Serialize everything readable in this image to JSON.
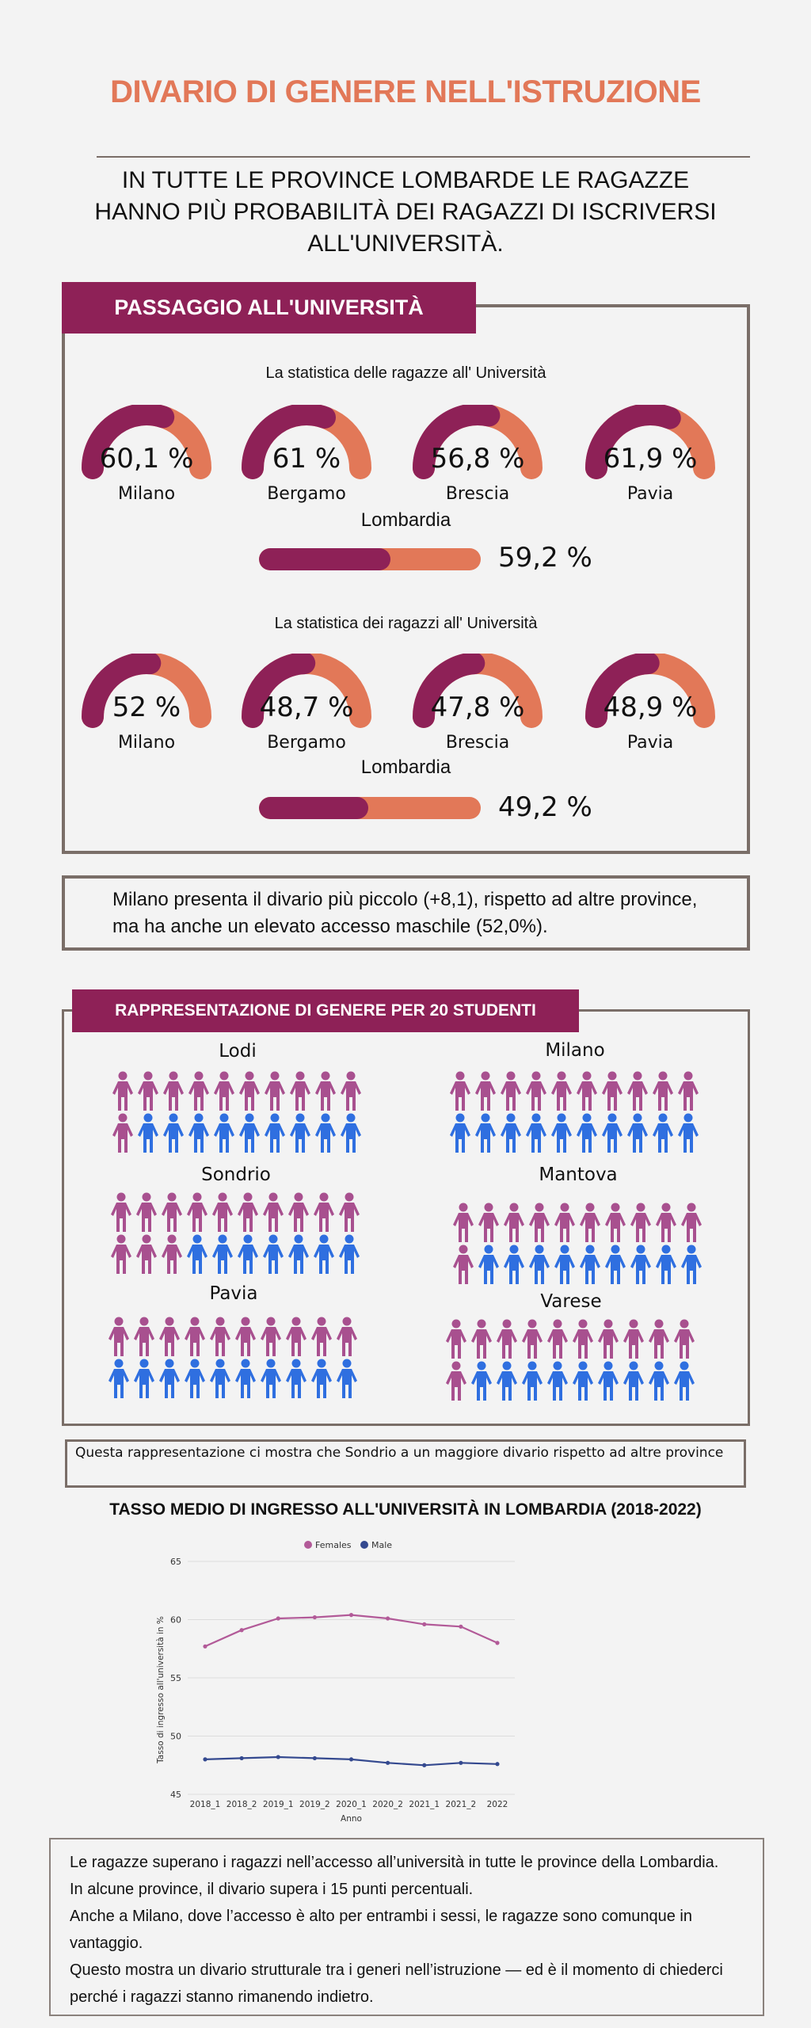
{
  "header": {
    "title": "DIVARIO DI GENERE NELL'ISTRUZIONE",
    "subtitle": "In tutte le province lombarde le ragazze hanno più probabilità dei ragazzi di iscriversi all'università."
  },
  "colors": {
    "accent": "#8e2157",
    "secondary": "#e27858",
    "female_icon": "#a8508f",
    "male_icon": "#2f6fe0",
    "chart_female": "#b25a98",
    "chart_male": "#34498f",
    "border": "#7a6e68"
  },
  "passaggio": {
    "banner": "PASSAGGIO ALL'UNIVERSITÀ",
    "female": {
      "title": "La statistica delle ragazze all' Università",
      "gauges": [
        {
          "city": "Milano",
          "label": "60,1 %",
          "value": 60.1
        },
        {
          "city": "Bergamo",
          "label": "61 %",
          "value": 61
        },
        {
          "city": "Brescia",
          "label": "56,8 %",
          "value": 56.8
        },
        {
          "city": "Pavia",
          "label": "61,9 %",
          "value": 61.9
        }
      ],
      "region": "Lombardia",
      "region_label": "59,2 %",
      "region_value": 59.2
    },
    "male": {
      "title": "La statistica dei ragazzi all' Università",
      "gauges": [
        {
          "city": "Milano",
          "label": "52 %",
          "value": 52
        },
        {
          "city": "Bergamo",
          "label": "48,7 %",
          "value": 48.7
        },
        {
          "city": "Brescia",
          "label": "47,8 %",
          "value": 47.8
        },
        {
          "city": "Pavia",
          "label": "48,9 %",
          "value": 48.9
        }
      ],
      "region": "Lombardia",
      "region_label": "49,2 %",
      "region_value": 49.2
    }
  },
  "milano_note": "Milano presenta il divario più piccolo (+8,1), rispetto ad altre province, ma  ha anche un elevato accesso maschile (52,0%).",
  "representation": {
    "banner": "RAPPRESENTAZIONE  DI GENERE PER 20 STUDENTI",
    "groups": [
      {
        "name": "Lodi",
        "female": 11,
        "male": 9
      },
      {
        "name": "Sondrio",
        "female": 13,
        "male": 7
      },
      {
        "name": "Pavia",
        "female": 10,
        "male": 10
      },
      {
        "name": "Milano",
        "female": 10,
        "male": 10
      },
      {
        "name": "Mantova",
        "female": 11,
        "male": 9
      },
      {
        "name": "Varese",
        "female": 11,
        "male": 9
      }
    ],
    "caption": "Questa rappresentazione ci mostra che Sondrio a un maggiore divario rispetto ad altre province"
  },
  "chart_data": {
    "type": "line",
    "title": "TASSO MEDIO DI INGRESSO ALL'UNIVERSITÀ IN LOMBARDIA (2018-2022)",
    "xlabel": "Anno",
    "ylabel": "Tasso di ingresso all'università in %",
    "categories": [
      "2018_1",
      "2018_2",
      "2019_1",
      "2019_2",
      "2020_1",
      "2020_2",
      "2021_1",
      "2021_2",
      "2022"
    ],
    "yticks": [
      45,
      50,
      55,
      60,
      65
    ],
    "ylim": [
      45,
      65
    ],
    "grid": true,
    "legend": "top-center",
    "series": [
      {
        "name": "Females",
        "values": [
          57.7,
          59.1,
          60.1,
          60.2,
          60.4,
          60.1,
          59.6,
          59.4,
          58.0
        ]
      },
      {
        "name": "Male",
        "values": [
          48.0,
          48.1,
          48.2,
          48.1,
          48.0,
          47.7,
          47.5,
          47.7,
          47.6
        ]
      }
    ]
  },
  "conclusion": [
    "Le ragazze superano i ragazzi nell’accesso all’università in tutte le province della Lombardia.",
    " In alcune province, il divario supera i 15 punti percentuali.",
    " Anche a Milano, dove l’accesso è alto per entrambi i sessi, le ragazze sono comunque in vantaggio.",
    " Questo mostra un divario strutturale tra i generi nell’istruzione — ed è il momento di chiederci perché i ragazzi stanno rimanendo indietro."
  ]
}
